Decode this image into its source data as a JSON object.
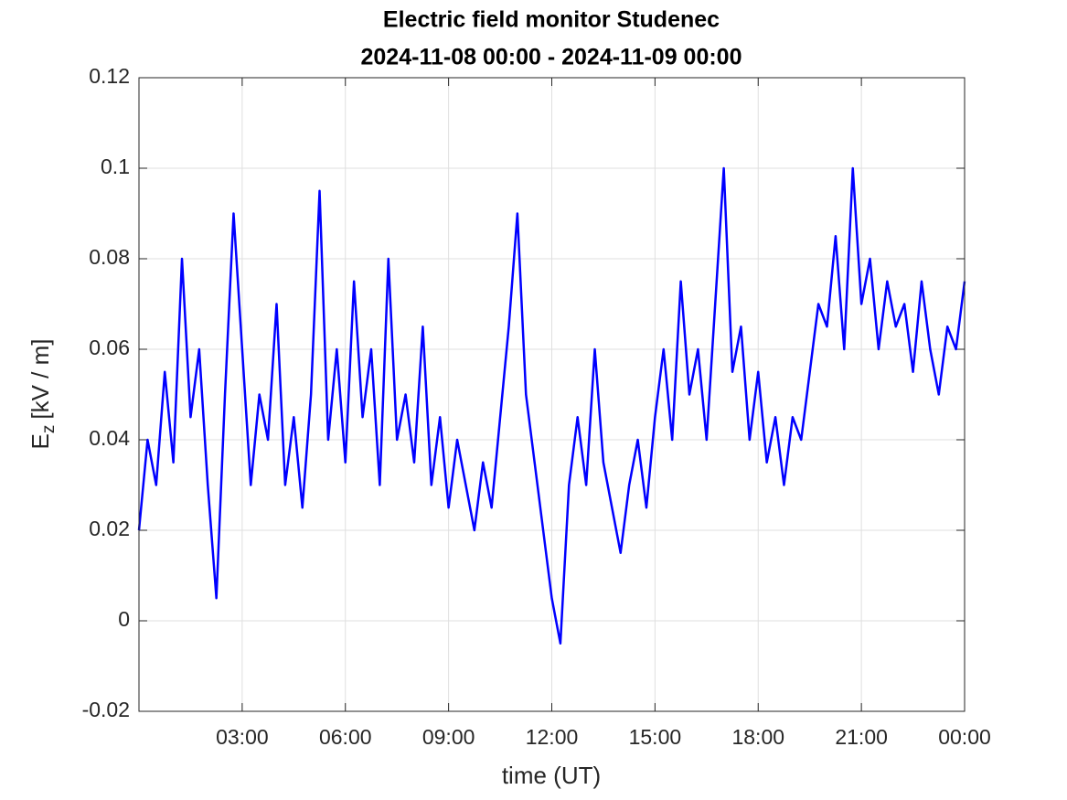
{
  "chart_data": {
    "type": "line",
    "title": "Electric field monitor Studenec",
    "subtitle": "2024-11-08 00:00 - 2024-11-09 00:00",
    "xlabel": "time (UT)",
    "ylabel": {
      "main": "E",
      "sub": "z",
      "unit": "[kV / m]"
    },
    "grid": true,
    "xlim": [
      0,
      24
    ],
    "xticks": [
      {
        "value": 3,
        "label": "03:00"
      },
      {
        "value": 6,
        "label": "06:00"
      },
      {
        "value": 9,
        "label": "09:00"
      },
      {
        "value": 12,
        "label": "12:00"
      },
      {
        "value": 15,
        "label": "15:00"
      },
      {
        "value": 18,
        "label": "18:00"
      },
      {
        "value": 21,
        "label": "21:00"
      },
      {
        "value": 24,
        "label": "00:00"
      }
    ],
    "ylim": [
      -0.02,
      0.12
    ],
    "yticks": [
      -0.02,
      0,
      0.02,
      0.04,
      0.06,
      0.08,
      0.1,
      0.12
    ],
    "x": [
      0,
      0.25,
      0.5,
      0.75,
      1,
      1.25,
      1.5,
      1.75,
      2,
      2.25,
      2.5,
      2.75,
      3,
      3.25,
      3.5,
      3.75,
      4,
      4.25,
      4.5,
      4.75,
      5,
      5.25,
      5.5,
      5.75,
      6,
      6.25,
      6.5,
      6.75,
      7,
      7.25,
      7.5,
      7.75,
      8,
      8.25,
      8.5,
      8.75,
      9,
      9.25,
      9.5,
      9.75,
      10,
      10.25,
      10.5,
      10.75,
      11,
      11.25,
      11.5,
      11.75,
      12,
      12.25,
      12.5,
      12.75,
      13,
      13.25,
      13.5,
      13.75,
      14,
      14.25,
      14.5,
      14.75,
      15,
      15.25,
      15.5,
      15.75,
      16,
      16.25,
      16.5,
      16.75,
      17,
      17.25,
      17.5,
      17.75,
      18,
      18.25,
      18.5,
      18.75,
      19,
      19.25,
      19.5,
      19.75,
      20,
      20.25,
      20.5,
      20.75,
      21,
      21.25,
      21.5,
      21.75,
      22,
      22.25,
      22.5,
      22.75,
      23,
      23.25,
      23.5,
      23.75,
      24
    ],
    "series": [
      {
        "name": "Ez",
        "color": "#0000ff",
        "values": [
          0.02,
          0.04,
          0.03,
          0.055,
          0.035,
          0.08,
          0.045,
          0.06,
          0.03,
          0.005,
          0.05,
          0.09,
          0.06,
          0.03,
          0.05,
          0.04,
          0.07,
          0.03,
          0.045,
          0.025,
          0.05,
          0.095,
          0.04,
          0.06,
          0.035,
          0.075,
          0.045,
          0.06,
          0.03,
          0.08,
          0.04,
          0.05,
          0.035,
          0.065,
          0.03,
          0.045,
          0.025,
          0.04,
          0.03,
          0.02,
          0.035,
          0.025,
          0.045,
          0.065,
          0.09,
          0.05,
          0.035,
          0.02,
          0.005,
          -0.005,
          0.03,
          0.045,
          0.03,
          0.06,
          0.035,
          0.025,
          0.015,
          0.03,
          0.04,
          0.025,
          0.045,
          0.06,
          0.04,
          0.075,
          0.05,
          0.06,
          0.04,
          0.07,
          0.1,
          0.055,
          0.065,
          0.04,
          0.055,
          0.035,
          0.045,
          0.03,
          0.045,
          0.04,
          0.055,
          0.07,
          0.065,
          0.085,
          0.06,
          0.1,
          0.07,
          0.08,
          0.06,
          0.075,
          0.065,
          0.07,
          0.055,
          0.075,
          0.06,
          0.05,
          0.065,
          0.06,
          0.075
        ]
      }
    ]
  }
}
